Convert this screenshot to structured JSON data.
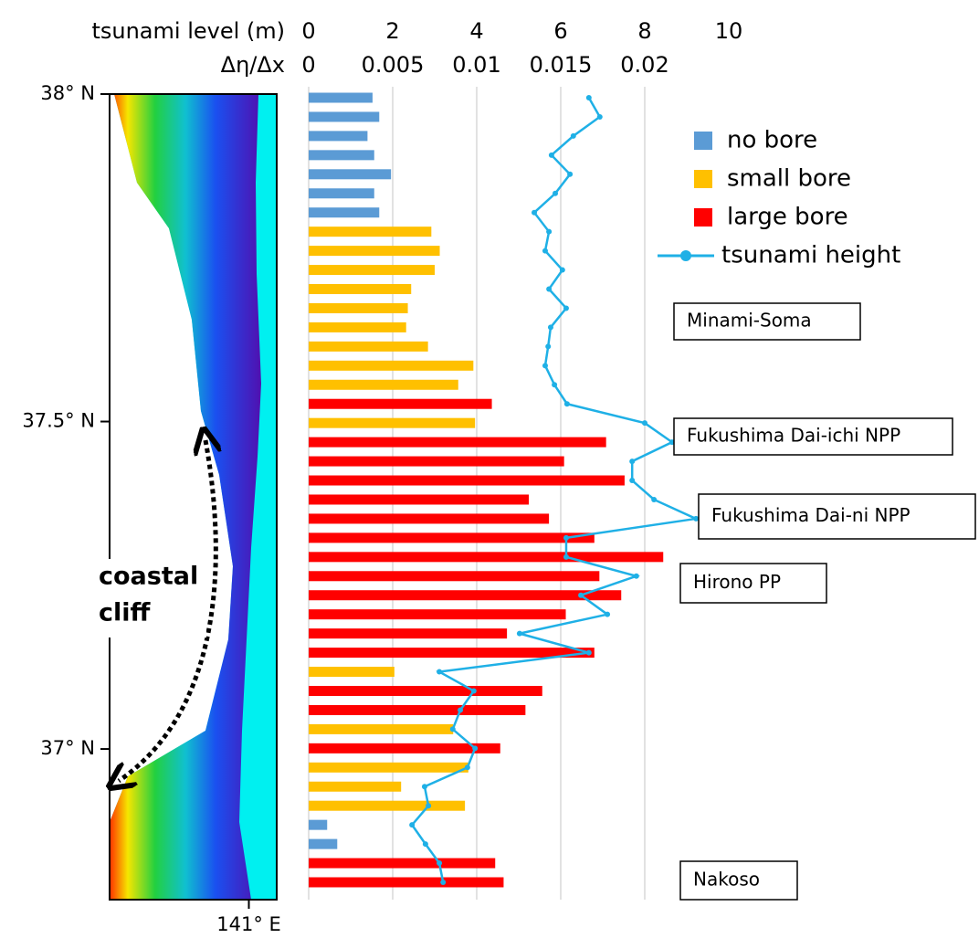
{
  "chart_data": {
    "type": "bar-line",
    "map_yticks": [
      {
        "value": 38,
        "label": "38° N"
      },
      {
        "value": 37.5,
        "label": "37.5° N"
      },
      {
        "value": 37,
        "label": "37° N"
      }
    ],
    "map_ylim": [
      36.77,
      38
    ],
    "map_xticks": [
      {
        "value": 141,
        "label": "141° E"
      }
    ],
    "map_xlim": [
      140.5,
      141.1
    ],
    "xlabel": "tsunami level (m)",
    "xlim": [
      0,
      10
    ],
    "xticks": [
      0,
      2,
      4,
      6,
      8,
      10
    ],
    "x2label": "Δη/Δx",
    "x2lim": [
      0,
      0.025
    ],
    "x2ticks": [
      0,
      0.005,
      0.01,
      0.015,
      0.02
    ],
    "grid": true,
    "series": [
      {
        "name": "no bore",
        "color": "#5b9bd5",
        "axis": "x2",
        "values": [
          0.0038,
          0.0042,
          0.0035,
          0.0039,
          0.0049,
          0.0039,
          0.0042,
          null,
          null,
          null,
          null,
          null,
          null,
          null,
          null,
          null,
          null,
          null,
          null,
          null,
          null,
          null,
          null,
          null,
          null,
          null,
          null,
          null,
          null,
          null,
          null,
          null,
          null,
          null,
          null,
          null,
          null,
          null,
          0.0011,
          0.0017,
          null,
          null
        ]
      },
      {
        "name": "small bore",
        "color": "#ffc000",
        "axis": "x2",
        "values": [
          null,
          null,
          null,
          null,
          null,
          null,
          null,
          0.0073,
          0.0078,
          0.0075,
          0.0061,
          0.0059,
          0.0058,
          0.0071,
          0.0098,
          0.0089,
          null,
          0.0099,
          null,
          null,
          null,
          null,
          null,
          null,
          null,
          null,
          null,
          null,
          null,
          null,
          0.0051,
          null,
          null,
          0.0086,
          null,
          0.0095,
          0.0055,
          0.0093,
          null,
          null,
          null,
          null
        ]
      },
      {
        "name": "large bore",
        "color": "#ff0000",
        "axis": "x2",
        "values": [
          null,
          null,
          null,
          null,
          null,
          null,
          null,
          null,
          null,
          null,
          null,
          null,
          null,
          null,
          null,
          null,
          0.0109,
          null,
          0.0177,
          0.0152,
          0.0188,
          0.0131,
          0.0143,
          0.017,
          0.0211,
          0.0173,
          0.0186,
          0.0153,
          0.0118,
          0.017,
          null,
          0.0139,
          0.0129,
          null,
          0.0114,
          null,
          null,
          null,
          null,
          null,
          0.0111,
          0.0116
        ]
      },
      {
        "name": "tsunami height",
        "color": "#1fb0e6",
        "type": "line",
        "values": [
          6.67,
          6.93,
          6.3,
          5.78,
          6.22,
          5.87,
          5.37,
          5.72,
          5.63,
          6.04,
          5.72,
          6.13,
          5.76,
          5.7,
          5.63,
          5.85,
          6.15,
          8.0,
          8.65,
          7.7,
          7.7,
          8.22,
          9.22,
          6.13,
          6.13,
          7.8,
          6.48,
          7.11,
          5.02,
          6.67,
          3.11,
          3.93,
          3.61,
          3.43,
          3.96,
          3.78,
          2.76,
          2.85,
          2.46,
          2.78,
          3.11,
          3.2
        ]
      }
    ],
    "annotations": [
      "Minami-Soma",
      "Fukushima Dai-ichi NPP",
      "Fukushima Dai-ni NPP",
      "Hirono PP",
      "Nakoso"
    ],
    "map_annotation": [
      "coastal",
      "cliff"
    ]
  }
}
